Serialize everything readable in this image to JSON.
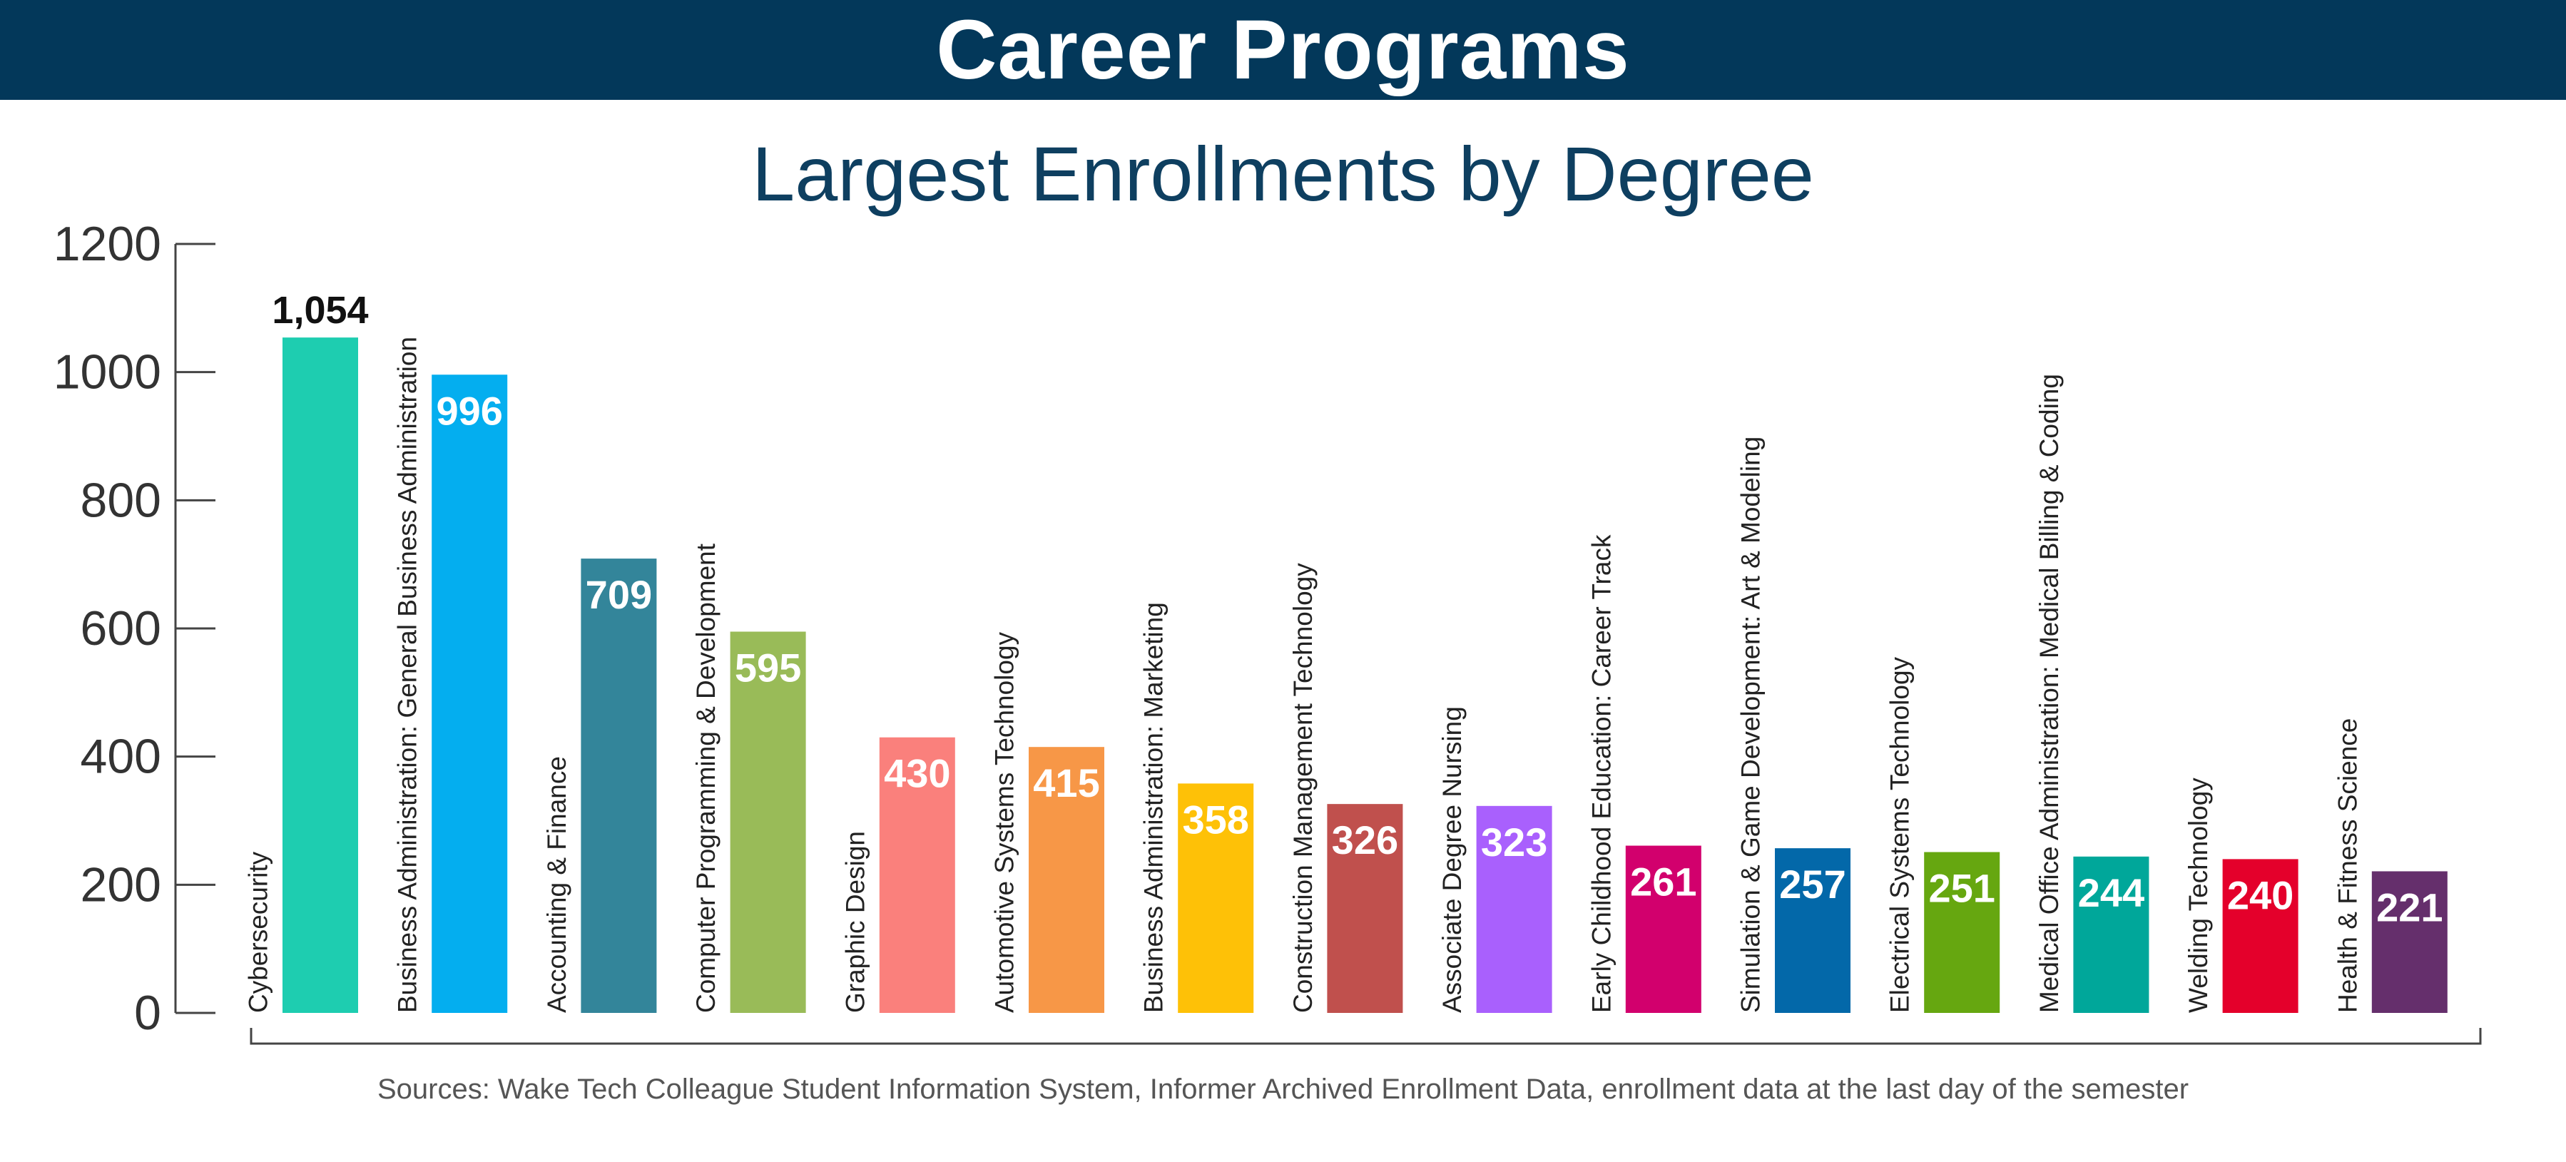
{
  "header": {
    "banner_title": "Career Programs",
    "source_note": "Sources: Wake Tech Colleague Student Information System, Informer Archived Enrollment Data, enrollment data at the last day of the semester",
    "banner_color": "#03385a",
    "title_color": "#0e3f60"
  },
  "chart_data": {
    "type": "bar",
    "title": "Largest Enrollments by Degree",
    "xlabel": "",
    "ylabel": "",
    "ylim": [
      0,
      1200
    ],
    "yticks": [
      0,
      200,
      400,
      600,
      800,
      1000,
      1200
    ],
    "grid": false,
    "categories": [
      "Cybersecurity",
      "Business Administration: General Business Administration",
      "Accounting & Finance",
      "Computer Programming & Development",
      "Graphic Design",
      "Automotive Systems Technology",
      "Business Administration: Marketing",
      "Construction Management Technology",
      "Associate Degree Nursing",
      "Early Childhood Education: Career Track",
      "Simulation & Game Development: Art & Modeling",
      "Electrical Systems Technology",
      "Medical Office Administration: Medical Billing & Coding",
      "Welding Technology",
      "Health & Fitness Science"
    ],
    "values": [
      1054,
      996,
      709,
      595,
      430,
      415,
      358,
      326,
      323,
      261,
      257,
      251,
      244,
      240,
      221
    ],
    "value_labels": [
      "1,054",
      "996",
      "709",
      "595",
      "430",
      "415",
      "358",
      "326",
      "323",
      "261",
      "257",
      "251",
      "244",
      "240",
      "221"
    ],
    "colors": [
      "#1ecdb0",
      "#04aeef",
      "#33859a",
      "#99bb58",
      "#fa807c",
      "#f79747",
      "#fec107",
      "#c0504d",
      "#a960fd",
      "#d2006d",
      "#0368a9",
      "#66a710",
      "#00a79a",
      "#e4002b",
      "#652f6c"
    ]
  }
}
